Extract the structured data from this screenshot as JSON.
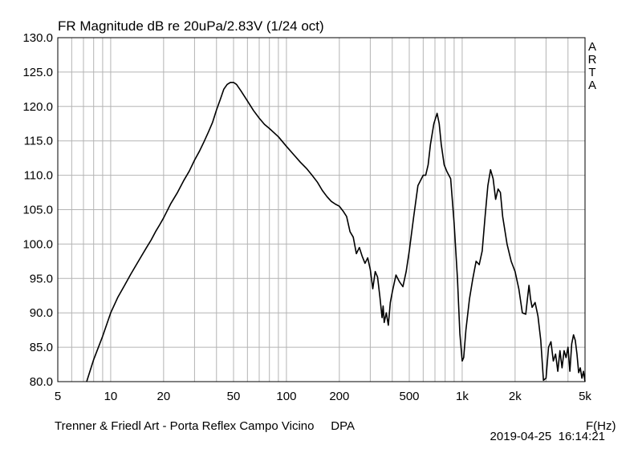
{
  "chart_data": {
    "type": "line",
    "title": "FR Magnitude dB re 20uPa/2.83V (1/24 oct)",
    "xlabel": "F(Hz)",
    "ylabel": "",
    "x_scale": "log",
    "xlim": [
      5,
      5000
    ],
    "ylim": [
      80,
      130
    ],
    "grid": true,
    "legend": "none",
    "x_ticks": [
      5,
      10,
      20,
      50,
      100,
      200,
      500,
      1000,
      2000,
      5000
    ],
    "x_tick_labels": [
      "5",
      "10",
      "20",
      "50",
      "100",
      "200",
      "500",
      "1k",
      "2k",
      "5k"
    ],
    "y_ticks": [
      80,
      85,
      90,
      95,
      100,
      105,
      110,
      115,
      120,
      125,
      130
    ],
    "y_tick_labels": [
      "80.0",
      "85.0",
      "90.0",
      "95.0",
      "100.0",
      "105.0",
      "110.0",
      "115.0",
      "120.0",
      "125.0",
      "130.0"
    ],
    "line_color": "#000000",
    "series": [
      {
        "points": [
          [
            7.3,
            80.0
          ],
          [
            8,
            83.2
          ],
          [
            9,
            86.6
          ],
          [
            10,
            90.0
          ],
          [
            11,
            92.3
          ],
          [
            12,
            94.0
          ],
          [
            13,
            95.6
          ],
          [
            14,
            97.0
          ],
          [
            15,
            98.3
          ],
          [
            16,
            99.5
          ],
          [
            17,
            100.6
          ],
          [
            18,
            101.8
          ],
          [
            19,
            102.8
          ],
          [
            20,
            103.8
          ],
          [
            22,
            105.9
          ],
          [
            24,
            107.5
          ],
          [
            26,
            109.2
          ],
          [
            28,
            110.6
          ],
          [
            30,
            112.2
          ],
          [
            32,
            113.5
          ],
          [
            34,
            114.9
          ],
          [
            36,
            116.3
          ],
          [
            38,
            117.7
          ],
          [
            40,
            119.5
          ],
          [
            42,
            121.0
          ],
          [
            44,
            122.5
          ],
          [
            46,
            123.2
          ],
          [
            48,
            123.5
          ],
          [
            50,
            123.5
          ],
          [
            52,
            123.2
          ],
          [
            55,
            122.3
          ],
          [
            60,
            120.8
          ],
          [
            65,
            119.4
          ],
          [
            70,
            118.3
          ],
          [
            75,
            117.4
          ],
          [
            80,
            116.8
          ],
          [
            90,
            115.6
          ],
          [
            100,
            114.2
          ],
          [
            110,
            113.0
          ],
          [
            120,
            111.9
          ],
          [
            130,
            111.0
          ],
          [
            140,
            110.0
          ],
          [
            150,
            109.0
          ],
          [
            160,
            107.8
          ],
          [
            170,
            106.9
          ],
          [
            180,
            106.2
          ],
          [
            190,
            105.8
          ],
          [
            200,
            105.5
          ],
          [
            210,
            104.8
          ],
          [
            220,
            104.0
          ],
          [
            230,
            101.8
          ],
          [
            240,
            101.0
          ],
          [
            250,
            98.6
          ],
          [
            260,
            99.5
          ],
          [
            270,
            98.2
          ],
          [
            280,
            97.2
          ],
          [
            290,
            98.0
          ],
          [
            300,
            96.3
          ],
          [
            310,
            93.5
          ],
          [
            320,
            96.0
          ],
          [
            330,
            95.2
          ],
          [
            340,
            92.4
          ],
          [
            350,
            89.3
          ],
          [
            355,
            91.0
          ],
          [
            360,
            88.6
          ],
          [
            370,
            90.0
          ],
          [
            380,
            88.2
          ],
          [
            390,
            91.5
          ],
          [
            400,
            93.0
          ],
          [
            420,
            95.5
          ],
          [
            440,
            94.5
          ],
          [
            460,
            93.8
          ],
          [
            480,
            96.0
          ],
          [
            500,
            99.0
          ],
          [
            530,
            104.0
          ],
          [
            560,
            108.5
          ],
          [
            600,
            110.0
          ],
          [
            620,
            110.0
          ],
          [
            640,
            111.5
          ],
          [
            660,
            114.5
          ],
          [
            690,
            117.5
          ],
          [
            720,
            119.0
          ],
          [
            740,
            117.5
          ],
          [
            760,
            114.5
          ],
          [
            790,
            111.5
          ],
          [
            820,
            110.5
          ],
          [
            860,
            109.5
          ],
          [
            900,
            103.0
          ],
          [
            940,
            95.0
          ],
          [
            970,
            87.0
          ],
          [
            1000,
            83.0
          ],
          [
            1020,
            83.5
          ],
          [
            1050,
            87.5
          ],
          [
            1100,
            92.0
          ],
          [
            1150,
            95.0
          ],
          [
            1200,
            97.5
          ],
          [
            1250,
            97.0
          ],
          [
            1300,
            99.0
          ],
          [
            1350,
            104.0
          ],
          [
            1400,
            108.5
          ],
          [
            1450,
            110.8
          ],
          [
            1500,
            109.5
          ],
          [
            1550,
            106.5
          ],
          [
            1600,
            108.0
          ],
          [
            1650,
            107.5
          ],
          [
            1700,
            104.0
          ],
          [
            1800,
            100.0
          ],
          [
            1900,
            97.5
          ],
          [
            2000,
            96.0
          ],
          [
            2100,
            93.5
          ],
          [
            2200,
            90.0
          ],
          [
            2300,
            89.8
          ],
          [
            2350,
            92.0
          ],
          [
            2400,
            94.0
          ],
          [
            2450,
            92.0
          ],
          [
            2500,
            90.8
          ],
          [
            2600,
            91.5
          ],
          [
            2700,
            89.5
          ],
          [
            2800,
            86.0
          ],
          [
            2900,
            80.2
          ],
          [
            3000,
            80.5
          ],
          [
            3100,
            85.0
          ],
          [
            3200,
            85.8
          ],
          [
            3300,
            83.0
          ],
          [
            3400,
            84.0
          ],
          [
            3500,
            81.5
          ],
          [
            3600,
            84.5
          ],
          [
            3700,
            82.0
          ],
          [
            3800,
            84.5
          ],
          [
            3900,
            83.5
          ],
          [
            4000,
            85.0
          ],
          [
            4100,
            81.5
          ],
          [
            4200,
            85.5
          ],
          [
            4300,
            86.8
          ],
          [
            4400,
            86.0
          ],
          [
            4500,
            84.0
          ],
          [
            4600,
            81.3
          ],
          [
            4700,
            82.0
          ],
          [
            4800,
            80.5
          ],
          [
            4900,
            81.5
          ],
          [
            5000,
            80.0
          ]
        ]
      }
    ]
  },
  "watermark": "ARTA",
  "footer": {
    "left": "Trenner & Friedl Art - Porta Reflex Campo Vicino     DPA",
    "right": "2019-04-25  16:14:21"
  }
}
